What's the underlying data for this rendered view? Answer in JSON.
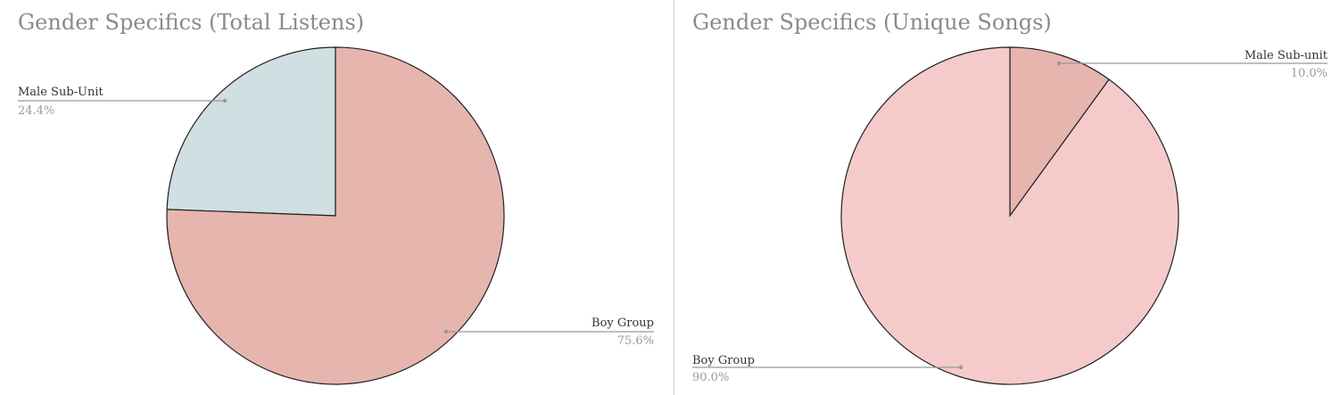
{
  "chart_data": [
    {
      "type": "pie",
      "title": "Gender Specifics (Total Listens)",
      "slices": [
        {
          "label": "Male Sub-Unit",
          "value": 24.4,
          "display": "24.4%",
          "color": "#d0dfe1"
        },
        {
          "label": "Boy Group",
          "value": 75.6,
          "display": "75.6%",
          "color": "#e6b5ae"
        }
      ]
    },
    {
      "type": "pie",
      "title": "Gender Specifics (Unique Songs)",
      "slices": [
        {
          "label": "Male Sub-unit",
          "value": 10.0,
          "display": "10.0%",
          "color": "#e6b5ae"
        },
        {
          "label": "Boy Group",
          "value": 90.0,
          "display": "90.0%",
          "color": "#f4cbca"
        }
      ]
    }
  ]
}
